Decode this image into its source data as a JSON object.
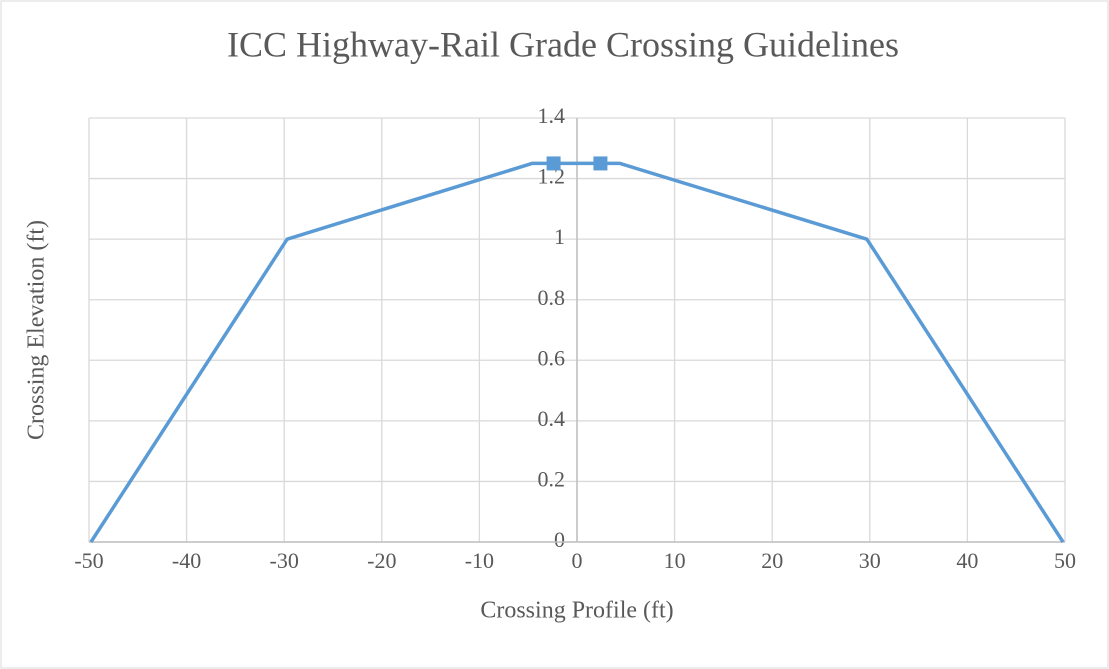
{
  "chart_data": {
    "type": "line",
    "title": "ICC Highway-Rail Grade Crossing Guidelines",
    "x_label": "Crossing Profile (ft)",
    "y_label": "Crossing Elevation (ft)",
    "xlim": [
      -50,
      50
    ],
    "ylim": [
      0,
      1.4
    ],
    "xticks": [
      -50,
      -40,
      -30,
      -20,
      -10,
      0,
      10,
      20,
      30,
      40,
      50
    ],
    "yticks": [
      0,
      0.2,
      0.4,
      0.6,
      0.8,
      1,
      1.2,
      1.4
    ],
    "grid": true,
    "series": [
      {
        "color": "#5b9bd5",
        "marker": "none",
        "x": [
          -49.8,
          -29.7,
          -4.6,
          4.4,
          29.7,
          49.8
        ],
        "values": [
          0,
          1,
          1.25,
          1.25,
          1,
          0
        ]
      },
      {
        "color": "#5b9bd5",
        "marker": "square",
        "line": false,
        "x": [
          -2.4,
          2.4
        ],
        "values": [
          1.25,
          1.25
        ]
      }
    ]
  }
}
